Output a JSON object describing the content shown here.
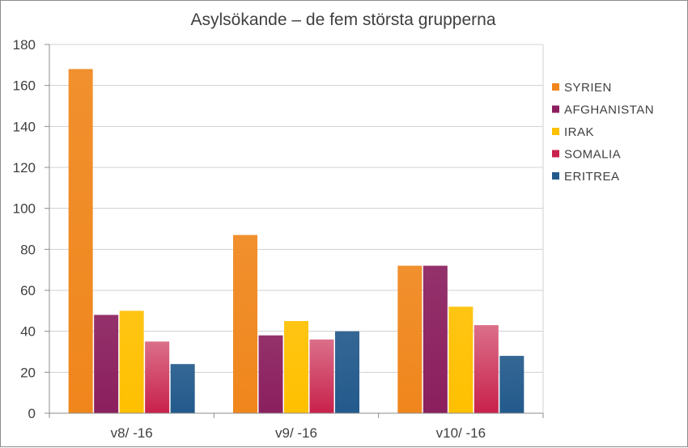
{
  "chart_data": {
    "type": "bar",
    "title": "Asylsökande – de fem största grupperna",
    "xlabel": "",
    "ylabel": "",
    "categories": [
      "v8/ -16",
      "v9/ -16",
      "v10/ -16"
    ],
    "ylim": [
      0,
      180
    ],
    "yticks": [
      "0",
      "20",
      "40",
      "60",
      "80",
      "100",
      "120",
      "140",
      "160",
      "180"
    ],
    "grid": true,
    "legend_position": "right",
    "series": [
      {
        "name": "SYRIEN",
        "color": "#F0861C",
        "values": [
          168,
          87,
          72
        ]
      },
      {
        "name": "AFGHANISTAN",
        "color": "#8B1F5E",
        "values": [
          48,
          38,
          72
        ]
      },
      {
        "name": "IRAK",
        "color": "#FFC000",
        "values": [
          50,
          45,
          52
        ]
      },
      {
        "name": "SOMALIA",
        "color": "#C8214B",
        "values": [
          35,
          36,
          43
        ]
      },
      {
        "name": "ERITREA",
        "color": "#235A8C",
        "values": [
          24,
          40,
          28
        ]
      }
    ]
  }
}
